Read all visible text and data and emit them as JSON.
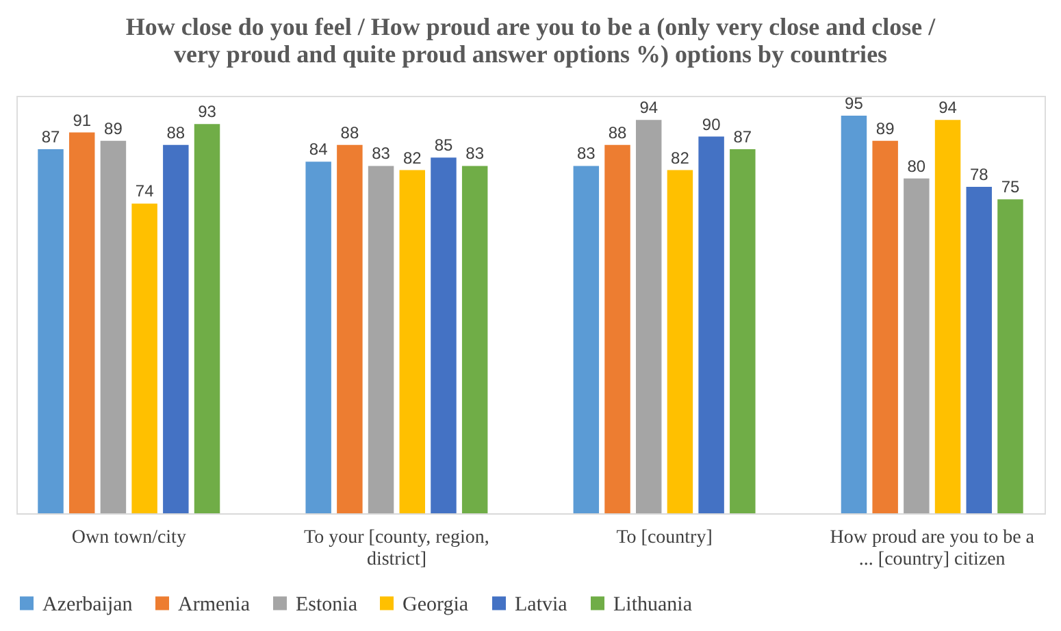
{
  "chart_data": {
    "type": "bar",
    "title": "How close do you feel / How proud are you to be a (only very close and close / very proud and quite proud answer options %) options by countries",
    "categories": [
      "Own town/city",
      "To your [county, region, district]",
      "To [country]",
      "How proud are you to be a ... [country] citizen"
    ],
    "series": [
      {
        "name": "Azerbaijan",
        "color": "#5b9bd5",
        "values": [
          87,
          84,
          83,
          95
        ]
      },
      {
        "name": "Armenia",
        "color": "#ed7d31",
        "values": [
          91,
          88,
          88,
          89
        ]
      },
      {
        "name": "Estonia",
        "color": "#a5a5a5",
        "values": [
          89,
          83,
          94,
          80
        ]
      },
      {
        "name": "Georgia",
        "color": "#ffc000",
        "values": [
          74,
          82,
          82,
          94
        ]
      },
      {
        "name": "Latvia",
        "color": "#4472c4",
        "values": [
          88,
          85,
          90,
          78
        ]
      },
      {
        "name": "Lithuania",
        "color": "#70ad47",
        "values": [
          93,
          83,
          87,
          75
        ]
      }
    ],
    "data_labels": true,
    "legend": "bottom",
    "grid": false
  }
}
